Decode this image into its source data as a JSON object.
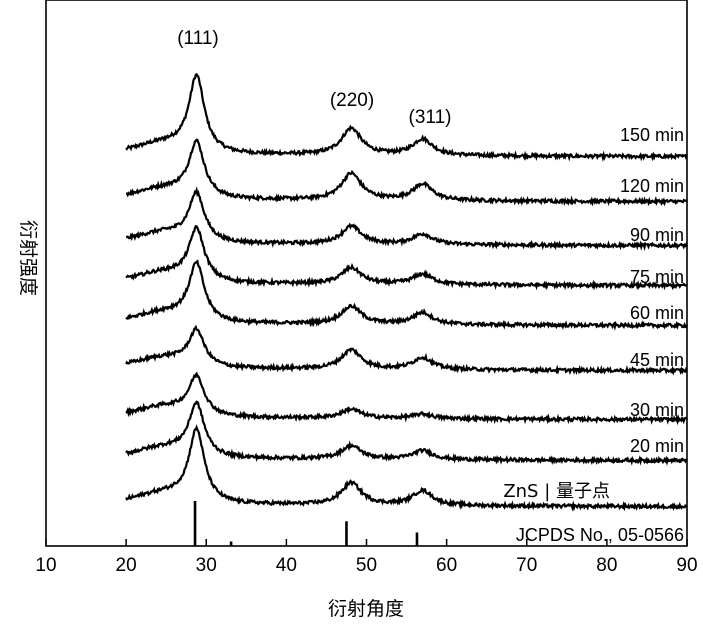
{
  "chart_data": {
    "type": "line",
    "title": "",
    "xlabel": "衍射角度",
    "ylabel": "衍射强度",
    "xlim": [
      10,
      90
    ],
    "x_ticks": [
      "10",
      "20",
      "30",
      "40",
      "50",
      "60",
      "70",
      "80",
      "90"
    ],
    "y_ticks": [],
    "grid": false,
    "series": [
      {
        "name": "150 min",
        "peaks": [
          {
            "x": 28.8,
            "height": 1.0
          },
          {
            "x": 48.1,
            "height": 0.36
          },
          {
            "x": 57.0,
            "height": 0.22
          }
        ],
        "broad_hump_center": 25.0
      },
      {
        "name": "120 min",
        "peaks": [
          {
            "x": 28.8,
            "height": 0.72
          },
          {
            "x": 48.1,
            "height": 0.36
          },
          {
            "x": 57.0,
            "height": 0.22
          }
        ],
        "broad_hump_center": 25.0
      },
      {
        "name": "90 min",
        "peaks": [
          {
            "x": 28.8,
            "height": 0.62
          },
          {
            "x": 48.1,
            "height": 0.24
          },
          {
            "x": 57.0,
            "height": 0.14
          }
        ],
        "broad_hump_center": 25.0
      },
      {
        "name": "75 min",
        "peaks": [
          {
            "x": 28.8,
            "height": 0.68
          },
          {
            "x": 48.1,
            "height": 0.22
          },
          {
            "x": 57.0,
            "height": 0.14
          }
        ],
        "broad_hump_center": 25.0
      },
      {
        "name": "60 min",
        "peaks": [
          {
            "x": 28.8,
            "height": 0.75
          },
          {
            "x": 48.1,
            "height": 0.24
          },
          {
            "x": 57.0,
            "height": 0.16
          }
        ],
        "broad_hump_center": 25.0
      },
      {
        "name": "45 min",
        "peaks": [
          {
            "x": 28.8,
            "height": 0.46
          },
          {
            "x": 48.1,
            "height": 0.26
          },
          {
            "x": 57.0,
            "height": 0.16
          }
        ],
        "broad_hump_center": 25.0
      },
      {
        "name": "30 min",
        "peaks": [
          {
            "x": 28.8,
            "height": 0.5
          },
          {
            "x": 48.1,
            "height": 0.12
          },
          {
            "x": 57.0,
            "height": 0.06
          }
        ],
        "broad_hump_center": 25.0
      },
      {
        "name": "20 min",
        "peaks": [
          {
            "x": 28.8,
            "height": 0.68
          },
          {
            "x": 48.1,
            "height": 0.18
          },
          {
            "x": 57.0,
            "height": 0.12
          }
        ],
        "broad_hump_center": 25.0
      },
      {
        "name": "ZnS | 量子点",
        "peaks": [
          {
            "x": 28.8,
            "height": 0.95
          },
          {
            "x": 48.1,
            "height": 0.3
          },
          {
            "x": 57.0,
            "height": 0.2
          }
        ],
        "broad_hump_center": 25.0
      }
    ],
    "reference_pattern": {
      "name": "JCPDS No., 05-0566",
      "lines": [
        {
          "x": 28.6,
          "intensity": 1.0
        },
        {
          "x": 33.1,
          "intensity": 0.1
        },
        {
          "x": 47.5,
          "intensity": 0.55
        },
        {
          "x": 56.3,
          "intensity": 0.3
        }
      ]
    },
    "annotations": [
      "(111)",
      "(220)",
      "(311)"
    ]
  }
}
